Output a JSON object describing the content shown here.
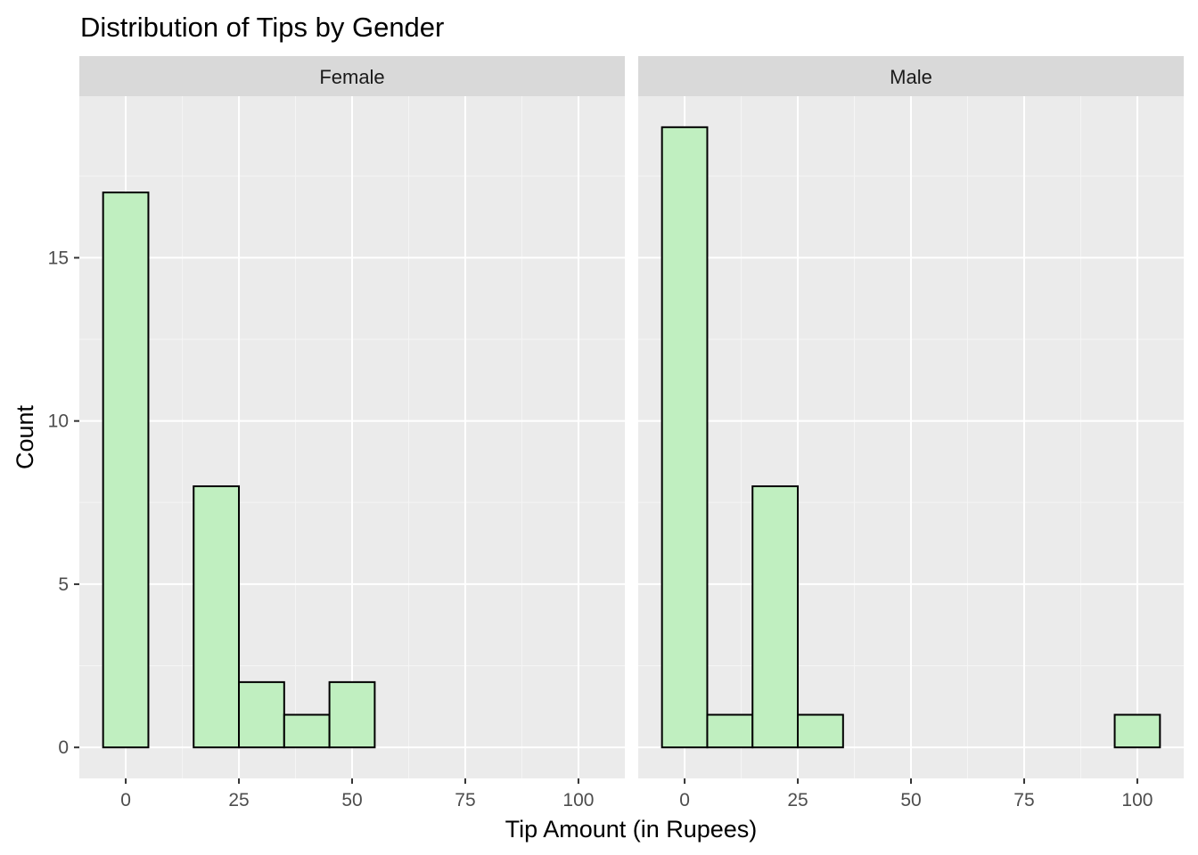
{
  "chart_data": {
    "type": "bar",
    "subtype": "histogram-faceted",
    "title": "Distribution of Tips by Gender",
    "xlabel": "Tip Amount (in Rupees)",
    "ylabel": "Count",
    "x_ticks": [
      "0",
      "25",
      "50",
      "75",
      "100"
    ],
    "x_tick_values": [
      0,
      25,
      50,
      75,
      100
    ],
    "y_ticks": [
      "0",
      "5",
      "10",
      "15"
    ],
    "y_tick_values": [
      0,
      5,
      10,
      15
    ],
    "xlim": [
      -10.25,
      110.25
    ],
    "ylim": [
      -0.95,
      19.95
    ],
    "bin_width": 10,
    "bin_centers": [
      0,
      10,
      20,
      30,
      40,
      50,
      60,
      70,
      80,
      90,
      100
    ],
    "fill_color": "#c0efc0",
    "outline_color": "#000000",
    "panel_background": "#ebebeb",
    "strip_background": "#d9d9d9",
    "grid": true,
    "panels": [
      {
        "name": "Female",
        "counts": [
          17,
          0,
          8,
          2,
          1,
          2,
          0,
          0,
          0,
          0,
          0
        ]
      },
      {
        "name": "Male",
        "counts": [
          19,
          1,
          8,
          1,
          0,
          0,
          0,
          0,
          0,
          0,
          1
        ]
      }
    ]
  }
}
